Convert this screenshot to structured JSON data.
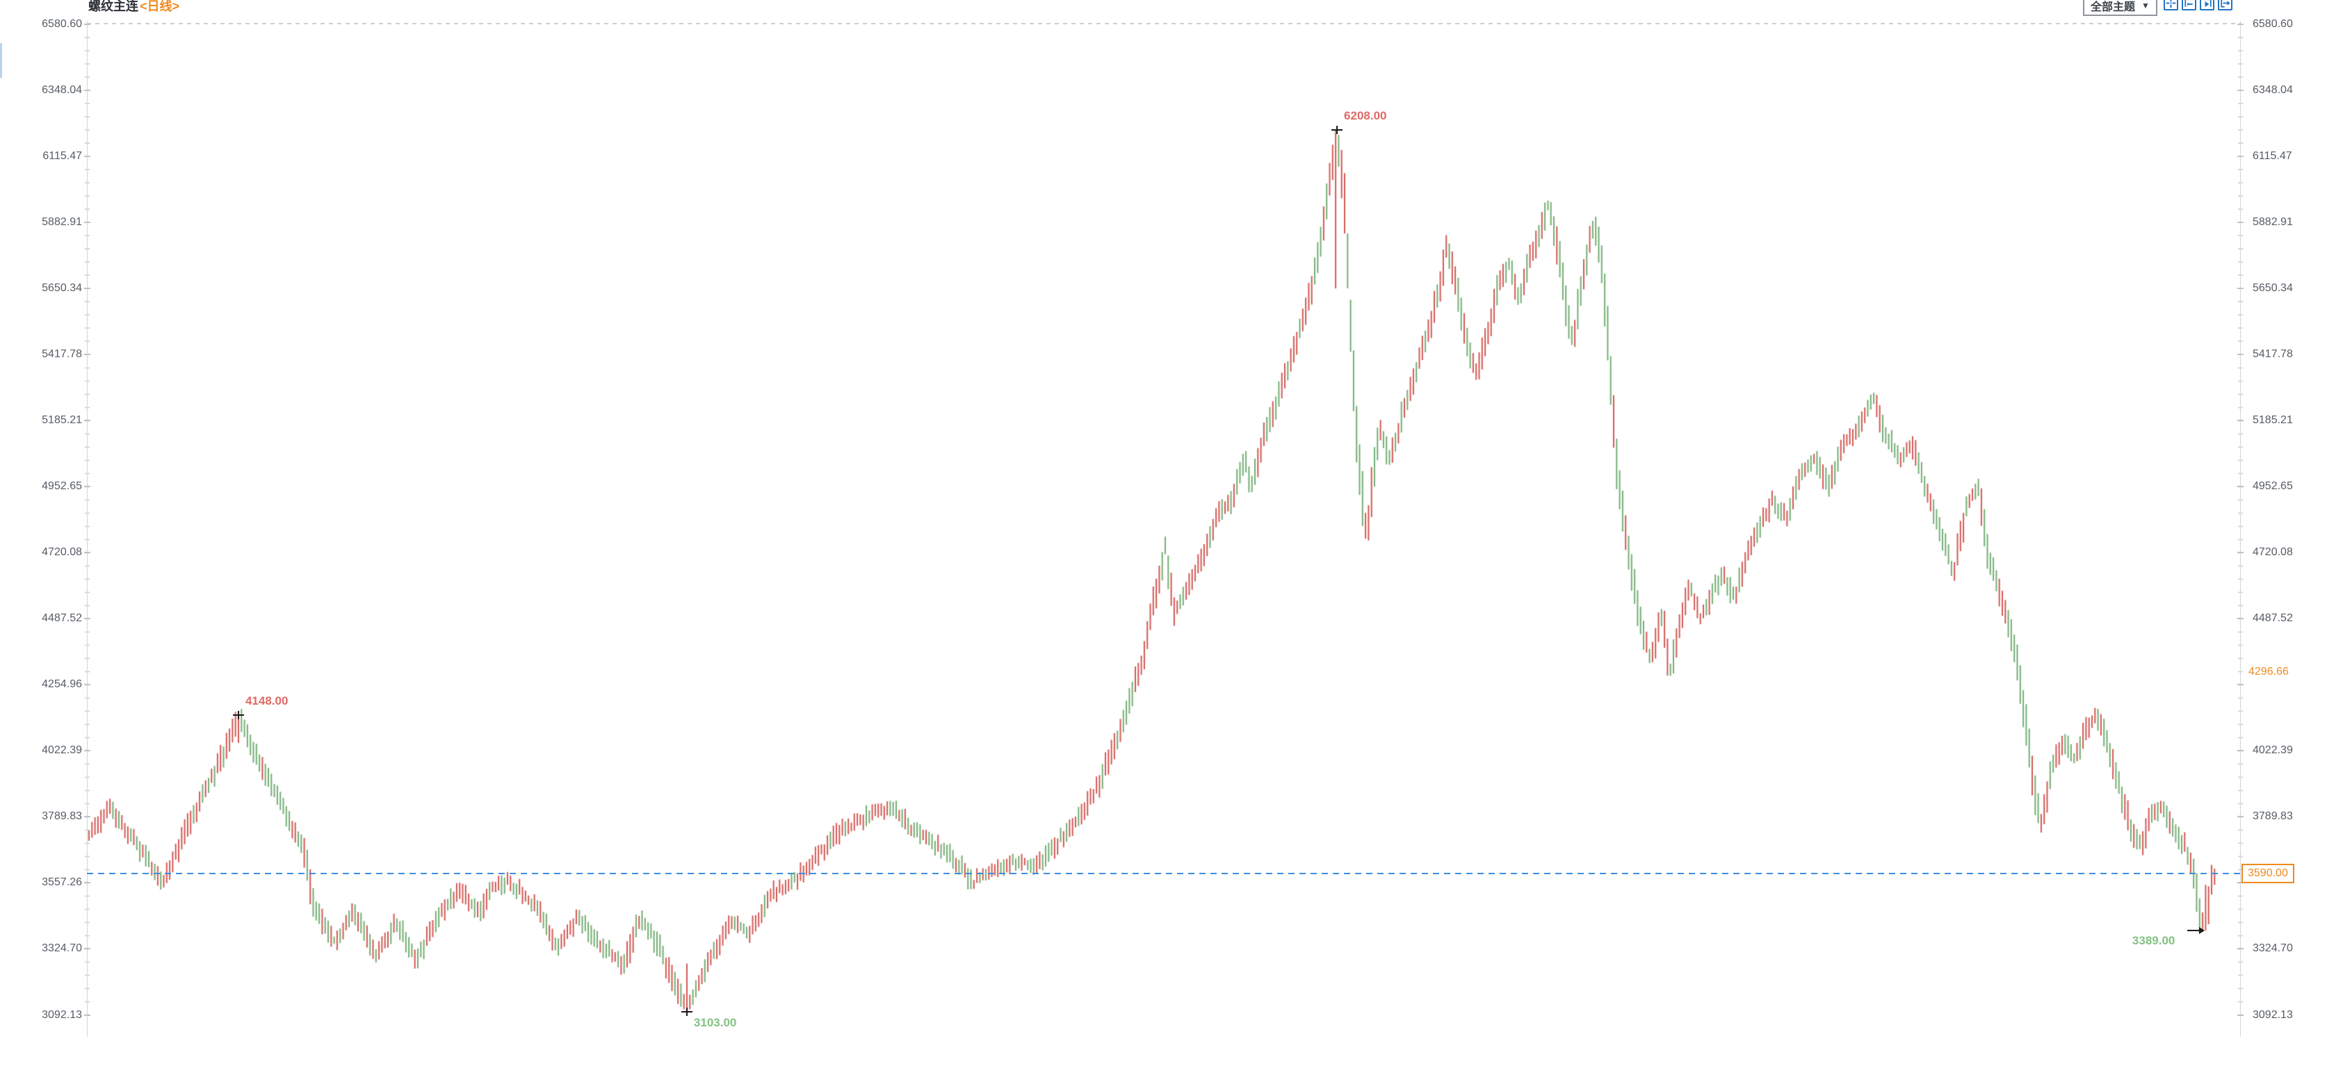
{
  "window": {
    "title_instrument": "螺纹主连",
    "title_period": "<日线>"
  },
  "toolbar": {
    "theme_dropdown_label": "全部主题",
    "dropdown_arrow": "▼",
    "accent_color": "#2273c4",
    "buttons": [
      {
        "label": "pan-mode",
        "icon": "crosshair-move-icon"
      },
      {
        "label": "scroll-to-start",
        "icon": "arrow-to-left-icon"
      },
      {
        "label": "scroll-right",
        "icon": "arrow-play-right-icon"
      },
      {
        "label": "go-to-latest",
        "icon": "arrow-exit-right-icon"
      }
    ]
  },
  "axis": {
    "y_ticks": [
      "6580.60",
      "6348.04",
      "6115.47",
      "5882.91",
      "5650.34",
      "5417.78",
      "5185.21",
      "4952.65",
      "4720.08",
      "4487.52",
      "4254.96",
      "4022.39",
      "3789.83",
      "3557.26",
      "3324.70",
      "3092.13"
    ],
    "right_omit": [
      "4254.96",
      "3557.26"
    ],
    "label_color": "#565c65"
  },
  "right_axis_overlays": {
    "settlement": {
      "label": "4296.66",
      "price": 4296.66,
      "color": "#ef8a1e"
    },
    "last_price": {
      "label": "3590.00",
      "price": 3590.0,
      "color": "#ef8a1e"
    }
  },
  "reference_line": {
    "price": 3590.0,
    "color": "#3d8ee0",
    "style": "dashed"
  },
  "annotation_colors": {
    "high": "#e06a66",
    "low": "#83c283",
    "marker": "#1a1a1a"
  },
  "chart_data": {
    "type": "candlestick",
    "instrument": "螺纹主连",
    "period": "日线",
    "ylim": [
      3092.13,
      6580.6
    ],
    "y_tick_step": 232.565,
    "bar_count": 712,
    "up_color": "#d25853",
    "down_color": "#72ad72",
    "high": 6208.0,
    "low": 3103.0,
    "last_price": 3590.0,
    "key_points": [
      {
        "label": "6208.00",
        "price": 6208,
        "f": 0.587,
        "side": "high"
      },
      {
        "label": "4148.00",
        "price": 4148,
        "f": 0.0703,
        "side": "high"
      },
      {
        "label": "3103.00",
        "price": 3103,
        "f": 0.2812,
        "side": "low"
      },
      {
        "label": "3389.00",
        "price": 3389,
        "f": 0.9954,
        "side": "low",
        "marker": "arrow"
      }
    ],
    "pins": [
      {
        "f": 0.0703,
        "high": 4148,
        "low": 4050
      },
      {
        "f": 0.2812,
        "high": 3273,
        "low": 3103
      },
      {
        "f": 0.587,
        "high": 6208,
        "low": 5650
      },
      {
        "f": 0.9954,
        "high": 3550,
        "low": 3389
      }
    ],
    "anchors": [
      [
        0,
        3720
      ],
      [
        0.01,
        3820
      ],
      [
        0.024,
        3680
      ],
      [
        0.035,
        3560
      ],
      [
        0.046,
        3750
      ],
      [
        0.056,
        3900
      ],
      [
        0.066,
        4060
      ],
      [
        0.0703,
        4148
      ],
      [
        0.08,
        3980
      ],
      [
        0.094,
        3780
      ],
      [
        0.102,
        3650
      ],
      [
        0.105,
        3480
      ],
      [
        0.115,
        3350
      ],
      [
        0.125,
        3450
      ],
      [
        0.135,
        3300
      ],
      [
        0.1445,
        3420
      ],
      [
        0.154,
        3280
      ],
      [
        0.164,
        3440
      ],
      [
        0.174,
        3530
      ],
      [
        0.184,
        3450
      ],
      [
        0.189,
        3550
      ],
      [
        0.197,
        3560
      ],
      [
        0.21,
        3480
      ],
      [
        0.22,
        3330
      ],
      [
        0.23,
        3440
      ],
      [
        0.239,
        3350
      ],
      [
        0.2515,
        3260
      ],
      [
        0.259,
        3430
      ],
      [
        0.267,
        3350
      ],
      [
        0.277,
        3180
      ],
      [
        0.2812,
        3103
      ],
      [
        0.292,
        3280
      ],
      [
        0.3015,
        3420
      ],
      [
        0.311,
        3380
      ],
      [
        0.321,
        3520
      ],
      [
        0.331,
        3560
      ],
      [
        0.3408,
        3640
      ],
      [
        0.3506,
        3720
      ],
      [
        0.3637,
        3780
      ],
      [
        0.377,
        3830
      ],
      [
        0.3866,
        3750
      ],
      [
        0.3964,
        3700
      ],
      [
        0.4062,
        3640
      ],
      [
        0.416,
        3560
      ],
      [
        0.4258,
        3600
      ],
      [
        0.4356,
        3640
      ],
      [
        0.4454,
        3610
      ],
      [
        0.4552,
        3700
      ],
      [
        0.465,
        3780
      ],
      [
        0.4748,
        3900
      ],
      [
        0.4846,
        4080
      ],
      [
        0.4957,
        4350
      ],
      [
        0.501,
        4550
      ],
      [
        0.5062,
        4730
      ],
      [
        0.5108,
        4500
      ],
      [
        0.5167,
        4600
      ],
      [
        0.5239,
        4700
      ],
      [
        0.5304,
        4850
      ],
      [
        0.5376,
        4900
      ],
      [
        0.5435,
        5050
      ],
      [
        0.5468,
        4950
      ],
      [
        0.5533,
        5150
      ],
      [
        0.5586,
        5250
      ],
      [
        0.5651,
        5400
      ],
      [
        0.5716,
        5550
      ],
      [
        0.5762,
        5700
      ],
      [
        0.5811,
        5900
      ],
      [
        0.587,
        6208
      ],
      [
        0.5906,
        5950
      ],
      [
        0.5939,
        5450
      ],
      [
        0.5965,
        5100
      ],
      [
        0.601,
        4760
      ],
      [
        0.604,
        5000
      ],
      [
        0.6073,
        5150
      ],
      [
        0.6122,
        5050
      ],
      [
        0.6177,
        5200
      ],
      [
        0.6236,
        5350
      ],
      [
        0.6302,
        5500
      ],
      [
        0.6351,
        5650
      ],
      [
        0.6387,
        5800
      ],
      [
        0.6432,
        5650
      ],
      [
        0.6482,
        5450
      ],
      [
        0.653,
        5350
      ],
      [
        0.658,
        5500
      ],
      [
        0.6628,
        5650
      ],
      [
        0.6678,
        5750
      ],
      [
        0.6727,
        5600
      ],
      [
        0.6776,
        5750
      ],
      [
        0.6825,
        5850
      ],
      [
        0.6867,
        5950
      ],
      [
        0.6906,
        5800
      ],
      [
        0.6946,
        5600
      ],
      [
        0.6978,
        5450
      ],
      [
        0.7018,
        5650
      ],
      [
        0.7054,
        5800
      ],
      [
        0.708,
        5880
      ],
      [
        0.7122,
        5700
      ],
      [
        0.7155,
        5350
      ],
      [
        0.7188,
        5000
      ],
      [
        0.7227,
        4800
      ],
      [
        0.7266,
        4600
      ],
      [
        0.7306,
        4450
      ],
      [
        0.7348,
        4350
      ],
      [
        0.7397,
        4500
      ],
      [
        0.7436,
        4300
      ],
      [
        0.7479,
        4450
      ],
      [
        0.7528,
        4600
      ],
      [
        0.7577,
        4500
      ],
      [
        0.7626,
        4560
      ],
      [
        0.7682,
        4650
      ],
      [
        0.7741,
        4550
      ],
      [
        0.779,
        4700
      ],
      [
        0.7855,
        4800
      ],
      [
        0.792,
        4900
      ],
      [
        0.7986,
        4850
      ],
      [
        0.8051,
        5000
      ],
      [
        0.8117,
        5050
      ],
      [
        0.8182,
        4950
      ],
      [
        0.8247,
        5100
      ],
      [
        0.8313,
        5150
      ],
      [
        0.8391,
        5260
      ],
      [
        0.8444,
        5150
      ],
      [
        0.8509,
        5050
      ],
      [
        0.8575,
        5100
      ],
      [
        0.864,
        4950
      ],
      [
        0.8705,
        4800
      ],
      [
        0.877,
        4650
      ],
      [
        0.8836,
        4900
      ],
      [
        0.8885,
        4950
      ],
      [
        0.8934,
        4700
      ],
      [
        0.9,
        4550
      ],
      [
        0.9065,
        4350
      ],
      [
        0.9114,
        4100
      ],
      [
        0.9147,
        3900
      ],
      [
        0.918,
        3750
      ],
      [
        0.9228,
        3950
      ],
      [
        0.9284,
        4050
      ],
      [
        0.9343,
        4000
      ],
      [
        0.9392,
        4100
      ],
      [
        0.9441,
        4150
      ],
      [
        0.9493,
        4050
      ],
      [
        0.9549,
        3900
      ],
      [
        0.9604,
        3750
      ],
      [
        0.9653,
        3680
      ],
      [
        0.9702,
        3800
      ],
      [
        0.9751,
        3820
      ],
      [
        0.98,
        3750
      ],
      [
        0.9849,
        3700
      ],
      [
        0.9898,
        3600
      ],
      [
        0.9928,
        3450
      ],
      [
        0.9954,
        3389
      ],
      [
        0.9984,
        3560
      ],
      [
        1,
        3590
      ]
    ]
  }
}
